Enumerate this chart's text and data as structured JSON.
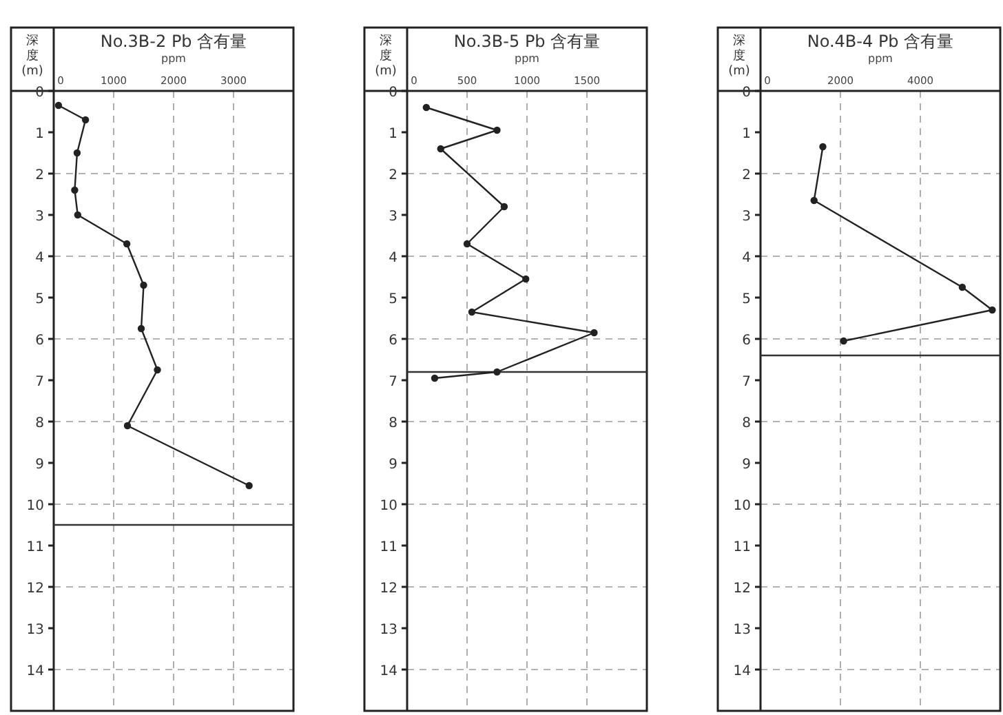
{
  "chart_data": [
    {
      "type": "line",
      "title": "No.3B-2 Pb 含有量",
      "xlabel": "ppm",
      "ylabel": "深度(m)",
      "xlim": [
        0,
        4000
      ],
      "xticks": [
        0,
        1000,
        2000,
        3000
      ],
      "ylim": [
        15,
        0
      ],
      "yticks": [
        0,
        1,
        2,
        3,
        4,
        5,
        6,
        7,
        8,
        9,
        10,
        11,
        12,
        13,
        14
      ],
      "grid": true,
      "marker": "circle",
      "line_style": "solid",
      "ref_lines": [
        {
          "axis": "y",
          "value": 10.5,
          "color": "#333333"
        }
      ],
      "series": [
        {
          "color": "#222222",
          "x": [
            80,
            530,
            390,
            350,
            400,
            1220,
            1500,
            1460,
            1730,
            1230,
            3260
          ],
          "values": [
            0.35,
            0.7,
            1.5,
            2.4,
            3.0,
            3.7,
            4.7,
            5.75,
            6.75,
            8.1,
            9.55
          ]
        }
      ]
    },
    {
      "type": "line",
      "title": "No.3B-5 Pb 含有量",
      "xlabel": "ppm",
      "ylabel": "深度(m)",
      "xlim": [
        0,
        2000
      ],
      "xticks": [
        0,
        500,
        1000,
        1500
      ],
      "ylim": [
        15,
        0
      ],
      "yticks": [
        0,
        1,
        2,
        3,
        4,
        5,
        6,
        7,
        8,
        9,
        10,
        11,
        12,
        13,
        14
      ],
      "grid": true,
      "marker": "circle",
      "line_style": "solid",
      "ref_lines": [
        {
          "axis": "y",
          "value": 6.8,
          "color": "#333333"
        }
      ],
      "series": [
        {
          "color": "#222222",
          "x": [
            160,
            750,
            280,
            810,
            500,
            990,
            540,
            1560,
            750,
            230
          ],
          "values": [
            0.4,
            0.95,
            1.4,
            2.8,
            3.7,
            4.55,
            5.35,
            5.85,
            6.8,
            6.95
          ]
        }
      ]
    },
    {
      "type": "line",
      "title": "No.4B-4 Pb 含有量",
      "xlabel": "ppm",
      "ylabel": "深度(m)",
      "xlim": [
        0,
        6000
      ],
      "xticks": [
        0,
        2000,
        4000
      ],
      "ylim": [
        15,
        0
      ],
      "yticks": [
        0,
        1,
        2,
        3,
        4,
        5,
        6,
        7,
        8,
        9,
        10,
        11,
        12,
        13,
        14
      ],
      "grid": true,
      "marker": "circle",
      "line_style": "solid",
      "ref_lines": [
        {
          "axis": "y",
          "value": 6.4,
          "color": "#333333"
        }
      ],
      "series": [
        {
          "color": "#222222",
          "x": [
            1560,
            1340,
            5050,
            5800,
            2080
          ],
          "values": [
            1.35,
            2.65,
            4.75,
            5.3,
            6.05
          ]
        }
      ]
    }
  ]
}
